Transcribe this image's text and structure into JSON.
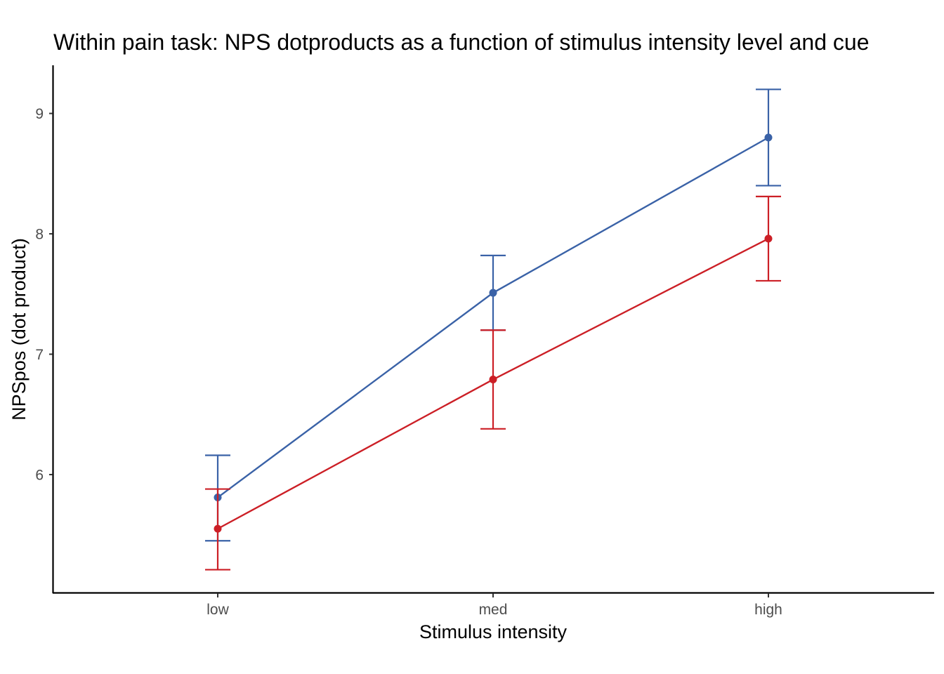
{
  "chart_data": {
    "type": "line",
    "title": "Within pain task: NPS dotproducts as a function of stimulus intensity level and cue",
    "xlabel": "Stimulus intensity",
    "ylabel": "NPSpos (dot product)",
    "categories": [
      "low",
      "med",
      "high"
    ],
    "ylim": [
      5.02,
      9.4
    ],
    "yticks": [
      6,
      7,
      8,
      9
    ],
    "grid": false,
    "legend": "none",
    "series": [
      {
        "color": "#3a62a7",
        "values": [
          5.81,
          7.51,
          8.8
        ],
        "error_lower": [
          5.45,
          7.2,
          8.4
        ],
        "error_upper": [
          6.16,
          7.82,
          9.2
        ]
      },
      {
        "color": "#cc1f26",
        "values": [
          5.55,
          6.79,
          7.96
        ],
        "error_lower": [
          5.21,
          6.38,
          7.61
        ],
        "error_upper": [
          5.88,
          7.2,
          8.31
        ]
      }
    ]
  }
}
